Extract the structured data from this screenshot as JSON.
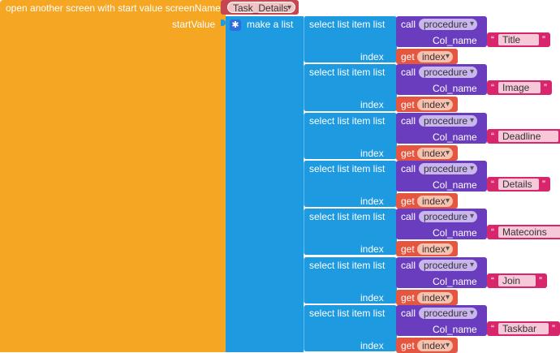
{
  "open_block": {
    "label": "open another screen with start value  screenName",
    "screen_name": "Task_Details",
    "start_value_label": "startValue"
  },
  "list_block": {
    "label": "make a list",
    "gear_icon": "gear-icon"
  },
  "select_label": "select list item  list",
  "index_label": "index",
  "call_label": "call",
  "procedure_label": "procedure",
  "col_name_label": "Col_name",
  "get_label": "get",
  "index_var": "index",
  "quote": "“",
  "quote_close": "”",
  "columns": [
    "Title",
    "Image",
    "Deadline",
    "Details",
    "Matecoins",
    "Join",
    "Taskbar"
  ],
  "colors": {
    "control": "#f5a623",
    "lists": "#1e9be0",
    "procedures": "#6a3dbe",
    "variables": "#e4563f",
    "text": "#d8266c",
    "screen": "#c6474f"
  }
}
